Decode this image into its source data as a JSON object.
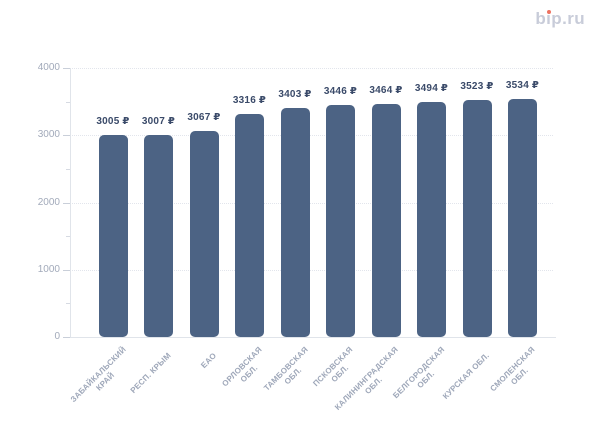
{
  "logo": {
    "text": "bip.ru",
    "part1": "b",
    "part2": "ı",
    "part3": "p.ru",
    "text_color": "#c8ccd9",
    "dot_color": "#ee7261"
  },
  "chart_data": {
    "type": "bar",
    "title": "",
    "xlabel": "",
    "ylabel": "",
    "categories": [
      "ЗАБАЙКАЛЬСКИЙ КРАЙ",
      "РЕСП. КРЫМ",
      "ЕАО",
      "ОРЛОВСКАЯ ОБЛ.",
      "ТАМБОВСКАЯ ОБЛ.",
      "ПСКОВСКАЯ ОБЛ.",
      "КАЛИНИНГРАДСКАЯ ОБЛ.",
      "БЕЛГОРОДСКАЯ ОБЛ.",
      "КУРСКАЯ ОБЛ.",
      "СМОЛЕНСКАЯ ОБЛ."
    ],
    "categories_display": [
      "ЗАБАЙКАЛЬСКИЙ\nКРАЙ",
      "РЕСП. КРЫМ",
      "ЕАО",
      "ОРЛОВСКАЯ\nОБЛ.",
      "ТАМБОВСКАЯ\nОБЛ.",
      "ПСКОВСКАЯ\nОБЛ.",
      "КАЛИНИНГРАДСКАЯ\nОБЛ.",
      "БЕЛГОРОДСКАЯ\nОБЛ.",
      "КУРСКАЯ ОБЛ.",
      "СМОЛЕНСКАЯ\nОБЛ."
    ],
    "values": [
      3005,
      3007,
      3067,
      3316,
      3403,
      3446,
      3464,
      3494,
      3523,
      3534
    ],
    "value_labels": [
      "3005 ₽",
      "3007 ₽",
      "3067 ₽",
      "3316 ₽",
      "3403 ₽",
      "3446 ₽",
      "3464 ₽",
      "3494 ₽",
      "3523 ₽",
      "3534 ₽"
    ],
    "currency": "₽",
    "ylim": [
      0,
      4000
    ],
    "y_axis": {
      "tick_labels": [
        "0",
        "1000",
        "2000",
        "3000",
        "4000"
      ],
      "major_step": 1000,
      "minor_step": 500
    },
    "grid": "horizontal-dotted",
    "legend": "none",
    "colors": {
      "bar": "#4c6384",
      "value_label": "#3a4a69",
      "axis_label": "#a2aaba",
      "x_label": "#9ea7b9",
      "gridline": "#e2e5ec",
      "axis_line": "#e0e4ea",
      "background": "#ffffff"
    }
  }
}
